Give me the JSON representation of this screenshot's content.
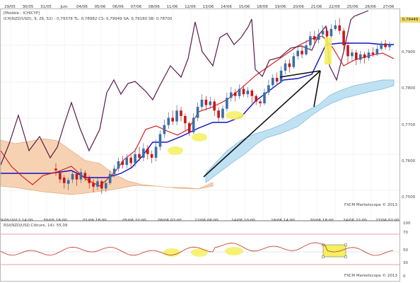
{
  "top_axis": {
    "dates": [
      "29/05",
      "30/05",
      "31/05",
      "Juin",
      "04/06",
      "05/06",
      "06/06",
      "07/06",
      "08/06",
      "11/06",
      "12/06",
      "13/06",
      "14/06",
      "15/06",
      "18/06",
      "19/06",
      "20/06",
      "21/06",
      "22/06",
      "25/06",
      "26/06",
      "27/06"
    ]
  },
  "main_panel": {
    "model_label": "[Modèle : ICHICYP]",
    "indicator_label": "ICH(NZD/USD), 9, 26, 52) : 0,79378  TL: 0,78982  CS: 0,79949  SA: 0,79180  SB: 0,78700",
    "watermark": "FXCM Marketscope © 2013",
    "price_labels": [
      "0,7900",
      "0,7800",
      "0,7700",
      "0,7600",
      "0,7500"
    ],
    "current_price": "0,79449",
    "bottom_dates": [
      "29/05/2012 14:00",
      "30/05 18:00",
      "01/06 18:00",
      "05/06 22:00",
      "08/06 02:00",
      "12/06 06:00",
      "14/06 10:00",
      "18/06 14:00",
      "20/06 18:00",
      "24/06 22:00",
      "27/06 02:00"
    ]
  },
  "rsi_panel": {
    "indicator_label": "RSI(NZD/USD.Clôture, 14): 55,09",
    "watermark": "FXCM Marketscope © 2013",
    "levels": [
      "100",
      "70",
      "50",
      "30",
      "0"
    ]
  },
  "colors": {
    "cloud_bull": "#bfe1f2",
    "cloud_bear": "#f6d2b3",
    "kijun": "#1010c0",
    "tenkan": "#d81010",
    "chikou": "#5a1a4a",
    "candle_up": "#3a6ea8",
    "candle_down": "#c81818",
    "highlight": "#f4f060",
    "arrow": "#111111"
  }
}
